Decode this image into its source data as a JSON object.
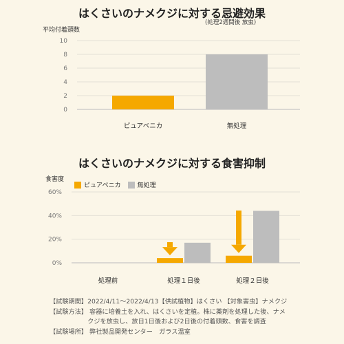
{
  "chart_data": [
    {
      "type": "bar",
      "title": "はくさいのナメクジに対する忌避効果",
      "subtitle": "(処理2週間後 放虫)",
      "ylabel": "平均付着頭数",
      "categories": [
        "ピュアベニカ",
        "無処理"
      ],
      "values": [
        2,
        8
      ],
      "ylim": [
        0,
        10
      ],
      "yticks": [
        "0",
        "2",
        "4",
        "6",
        "8",
        "10"
      ],
      "grid": true,
      "colors": [
        "#f5a800",
        "#bdbdbd"
      ]
    },
    {
      "type": "bar",
      "title": "はくさいのナメクジに対する食害抑制",
      "ylabel": "食害度",
      "categories": [
        "処理前",
        "処理１日後",
        "処理２日後"
      ],
      "series": [
        {
          "name": "ピュアベニカ",
          "values": [
            0,
            4,
            6
          ],
          "color": "#f5a800"
        },
        {
          "name": "無処理",
          "values": [
            0,
            17,
            44
          ],
          "color": "#bdbdbd"
        }
      ],
      "ylim": [
        0,
        60
      ],
      "yticks": [
        "0%",
        "20%",
        "40%",
        "60%"
      ],
      "grid": true,
      "legend": "top-left",
      "arrow_color": "#f5a800"
    }
  ],
  "footer": [
    "【試験期間】2022/4/11～2022/4/13【供試植物】はくさい 【対象害虫】ナメクジ",
    "【試験方法】 容器に培養土を入れ、はくさいを定植。株に薬剤を処理した後、ナメ",
    "　　　　　　クジを放虫し、放日1日後および2日後の付着頭数、食害を調査",
    "【試験場所】 弊社製品開発センター　ガラス温室"
  ]
}
